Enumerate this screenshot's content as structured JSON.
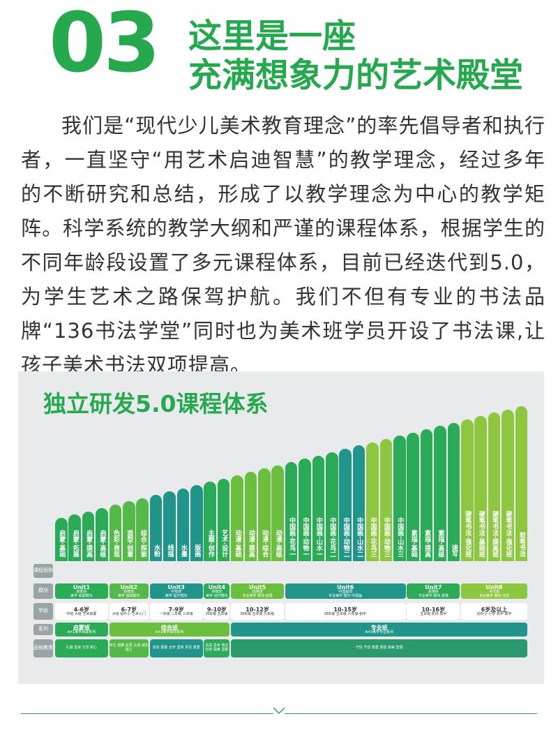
{
  "header": {
    "number": "03",
    "title_line1": "这里是一座",
    "title_line2": "充满想象力的艺术殿堂"
  },
  "intro": {
    "paragraph": "我们是“现代少儿美术教育理念”的率先倡导者和执行者，一直坚守“用艺术启迪智慧”的教学理念，经过多年的不断研究和总结，形成了以教学理念为中心的教学矩阵。科学系统的教学大纲和严谨的课程体系，根据学生的不同年龄段设置了多元课程体系，目前已经迭代到5.0，为学生艺术之路保驾护航。我们不但有专业的书法品牌“136书法学堂”同时也为美术班学员开设了书法课,让孩子美术书法双项提高。"
  },
  "chart": {
    "title": "独立研发5.0课程体系",
    "row_labels": [
      "课程规划",
      "模块",
      "学段",
      "系列",
      "品格教育"
    ],
    "bars": [
      {
        "label": "启蒙·基础",
        "color": "#2bab58"
      },
      {
        "label": "启蒙·拓展",
        "color": "#2bab58"
      },
      {
        "label": "启蒙·提高",
        "color": "#2bab58"
      },
      {
        "label": "启蒙·高级",
        "color": "#2bab58"
      },
      {
        "label": "色彩·表现",
        "color": "#55b94a"
      },
      {
        "label": "造型·创意",
        "color": "#55b94a"
      },
      {
        "label": "综合·探索",
        "color": "#55b94a"
      },
      {
        "label": "水粉",
        "color": "#22958a"
      },
      {
        "label": "线描",
        "color": "#22958a"
      },
      {
        "label": "水墨",
        "color": "#22958a"
      },
      {
        "label": "版画",
        "color": "#22958a"
      },
      {
        "label": "主题·创作",
        "color": "#2bab58"
      },
      {
        "label": "艺术·设计",
        "color": "#2bab58"
      },
      {
        "label": "动漫·基础",
        "color": "#6cbe3f"
      },
      {
        "label": "动漫·提高",
        "color": "#6cbe3f"
      },
      {
        "label": "动漫·综合",
        "color": "#6cbe3f"
      },
      {
        "label": "动漫·高级",
        "color": "#6cbe3f"
      },
      {
        "label": "中国画·花鸟一",
        "color": "#2bab58"
      },
      {
        "label": "中国画·动物一",
        "color": "#2bab58"
      },
      {
        "label": "中国画·山水一",
        "color": "#2bab58"
      },
      {
        "label": "中国画·花鸟二",
        "color": "#2bab58"
      },
      {
        "label": "中国画·动物二",
        "color": "#22958a"
      },
      {
        "label": "中国画·山水二",
        "color": "#22958a"
      },
      {
        "label": "中国画·花鸟三",
        "color": "#8dc63f"
      },
      {
        "label": "中国画·动物三",
        "color": "#8dc63f"
      },
      {
        "label": "中国画·山水三",
        "color": "#2bab58"
      },
      {
        "label": "素描·基础",
        "color": "#2bab58"
      },
      {
        "label": "素描·提高",
        "color": "#2bab58"
      },
      {
        "label": "素描·高级",
        "color": "#2bab58"
      },
      {
        "label": "速写",
        "color": "#2bab58"
      },
      {
        "label": "硬笔书法·强化班",
        "color": "#8dc63f"
      },
      {
        "label": "硬笔书法·基础班",
        "color": "#8dc63f"
      },
      {
        "label": "硬笔书法·提高班",
        "color": "#8dc63f"
      },
      {
        "label": "硬笔书法·强化班",
        "color": "#8dc63f"
      },
      {
        "label": "软笔书法",
        "color": "#8dc63f"
      }
    ],
    "units": [
      {
        "name": "Unit1",
        "sub": "启蒙班",
        "desc": "美学 启蒙模块",
        "color": "#2bab58"
      },
      {
        "name": "Unit2",
        "sub": "初级班",
        "desc": "美学 基础模块",
        "color": "#55b94a"
      },
      {
        "name": "Unit3",
        "sub": "中级班",
        "desc": "美学 提升模块",
        "color": "#22958a"
      },
      {
        "name": "Unit4",
        "sub": "高级班",
        "desc": "美学 创作模块",
        "color": "#2bab58"
      },
      {
        "name": "Unit5",
        "sub": "动漫班",
        "desc": "专业美学 模块·动漫",
        "color": "#6cbe3f"
      },
      {
        "name": "Unit6",
        "sub": "中国画班",
        "desc": "专业美学 模块·中国画",
        "color": "#22958a"
      },
      {
        "name": "Unit7",
        "sub": "素描班",
        "desc": "专业美学 模块·素描",
        "color": "#2bab58"
      },
      {
        "name": "Unit8",
        "sub": "书法班",
        "desc": "专业美学 模块·书法",
        "color": "#8dc63f"
      }
    ],
    "ages": [
      {
        "age": "4-6岁",
        "desc": "中班 大班 艺术启蒙"
      },
      {
        "age": "6-7岁",
        "desc": "大班 幼升小 艺术入门"
      },
      {
        "age": "7-9岁",
        "desc": "一年级 二年级 三年级"
      },
      {
        "age": "9-10岁",
        "desc": "四年级 五年级"
      },
      {
        "age": "10-12岁",
        "desc": "四年级 五年级 六年级"
      },
      {
        "age": "10-15岁",
        "desc": "四年级 五年级 六年级 初中"
      },
      {
        "age": "10-16岁",
        "desc": "五年级 初中 高中"
      },
      {
        "age": "6岁及以上",
        "desc": "幼升小 小学 初中 高中"
      }
    ],
    "series": [
      {
        "name": "启蒙班",
        "desc": "Art1美学启蒙系列"
      },
      {
        "name": "综合班",
        "desc": "Art2美学探究系列"
      },
      {
        "name": "专业班",
        "desc": "Art3美学专业系列"
      }
    ],
    "character": [
      {
        "text": "礼貌 善良 分享 耐心"
      },
      {
        "text": "专注 观察 友爱 认真 诚实 独立"
      },
      {
        "text": "自信 勇敢 合作 坚持 责任 尊重"
      },
      {
        "text": "创造 思考 表达 包容 探索 坚毅"
      },
      {
        "text": "守信 节俭 尊重 感恩 审美 智慧"
      }
    ]
  }
}
